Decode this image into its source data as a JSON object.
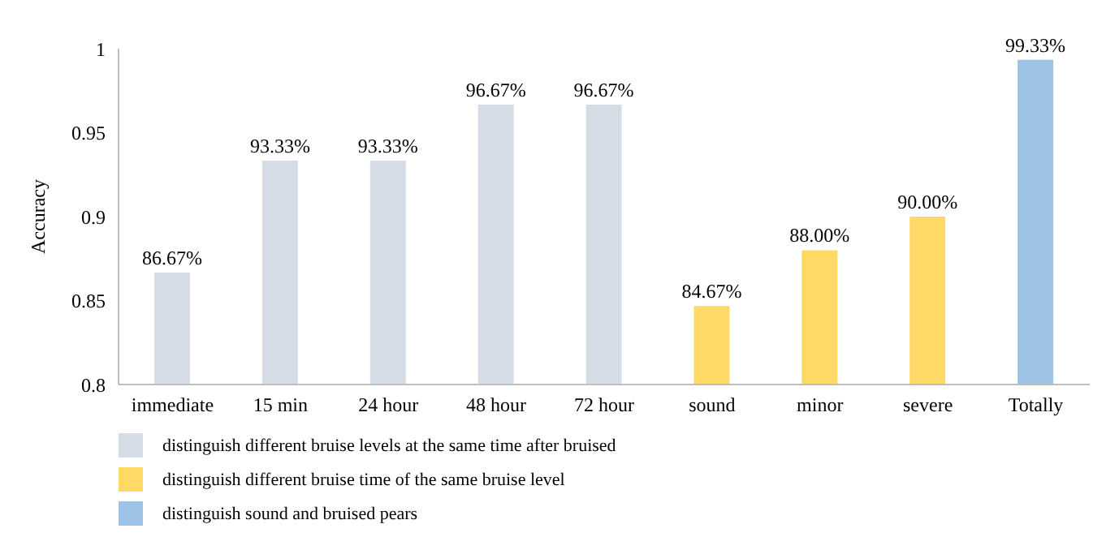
{
  "chart_data": {
    "type": "bar",
    "ylabel": "Accuracy",
    "categories": [
      "immediate",
      "15 min",
      "24 hour",
      "48 hour",
      "72 hour",
      "sound",
      "minor",
      "severe",
      "Totally"
    ],
    "ylim": [
      0.8,
      1
    ],
    "yticks": [
      0.8,
      0.85,
      0.9,
      0.95,
      1
    ],
    "grid": false,
    "legend": "bottom",
    "series": [
      {
        "name": "distinguish different bruise levels at the same time after bruised",
        "color": "#d6dce5",
        "values": [
          0.8667,
          0.9333,
          0.9333,
          0.9667,
          0.9667,
          null,
          null,
          null,
          null
        ],
        "value_labels": [
          "86.67%",
          "93.33%",
          "93.33%",
          "96.67%",
          "96.67%",
          null,
          null,
          null,
          null
        ]
      },
      {
        "name": "distinguish different bruise time of the same bruise level",
        "color": "#ffd966",
        "values": [
          null,
          null,
          null,
          null,
          null,
          0.8467,
          0.88,
          0.9,
          null
        ],
        "value_labels": [
          null,
          null,
          null,
          null,
          null,
          "84.67%",
          "88.00%",
          "90.00%",
          null
        ]
      },
      {
        "name": "distinguish sound and bruised pears",
        "color": "#9dc3e6",
        "values": [
          null,
          null,
          null,
          null,
          null,
          null,
          null,
          null,
          0.9933
        ],
        "value_labels": [
          null,
          null,
          null,
          null,
          null,
          null,
          null,
          null,
          "99.33%"
        ]
      }
    ]
  }
}
